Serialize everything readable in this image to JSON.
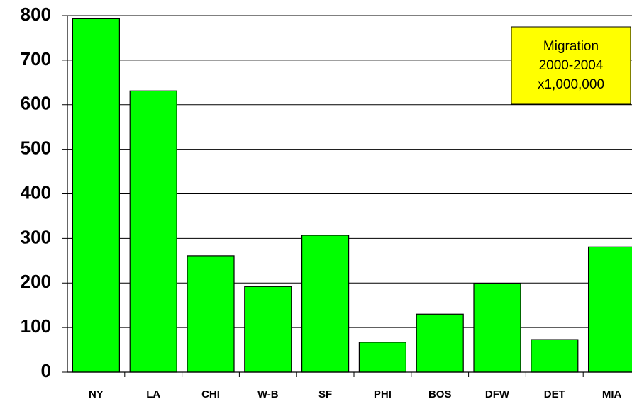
{
  "chart_data": {
    "type": "bar",
    "annotation": [
      "Migration",
      "2000-2004",
      "x1,000,000"
    ],
    "categories": [
      "NY",
      "LA",
      "CHI",
      "W-B",
      "SF",
      "PHI",
      "BOS",
      "DFW",
      "DET",
      "MIA"
    ],
    "values": [
      793,
      631,
      261,
      192,
      307,
      67,
      130,
      199,
      73,
      281
    ],
    "color": "#00ff00",
    "ylim": [
      0,
      800
    ],
    "yticks": [
      0,
      100,
      200,
      300,
      400,
      500,
      600,
      700,
      800
    ],
    "grid": true
  }
}
